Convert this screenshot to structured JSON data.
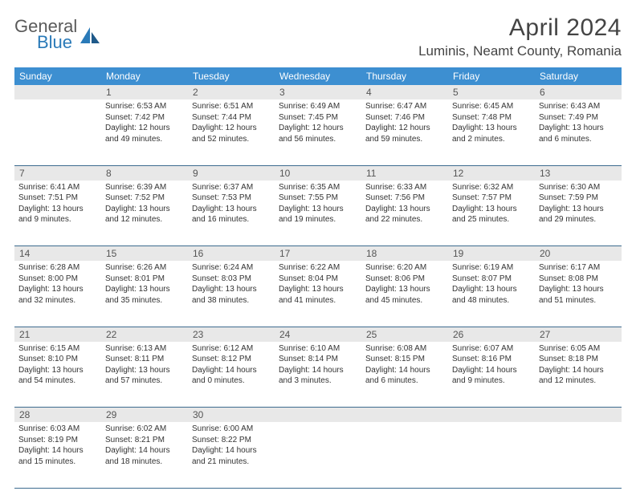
{
  "brand": {
    "line1": "General",
    "line2": "Blue"
  },
  "title": "April 2024",
  "location": "Luminis, Neamt County, Romania",
  "colors": {
    "header_bg": "#3d8fd1",
    "header_text": "#ffffff",
    "daynum_bg": "#e8e8e8",
    "border": "#3d6b8f",
    "logo_gray": "#5a5a5a",
    "logo_blue": "#2a7ab8"
  },
  "day_headers": [
    "Sunday",
    "Monday",
    "Tuesday",
    "Wednesday",
    "Thursday",
    "Friday",
    "Saturday"
  ],
  "weeks": [
    {
      "days": [
        {
          "num": "",
          "lines": []
        },
        {
          "num": "1",
          "lines": [
            "Sunrise: 6:53 AM",
            "Sunset: 7:42 PM",
            "Daylight: 12 hours and 49 minutes."
          ]
        },
        {
          "num": "2",
          "lines": [
            "Sunrise: 6:51 AM",
            "Sunset: 7:44 PM",
            "Daylight: 12 hours and 52 minutes."
          ]
        },
        {
          "num": "3",
          "lines": [
            "Sunrise: 6:49 AM",
            "Sunset: 7:45 PM",
            "Daylight: 12 hours and 56 minutes."
          ]
        },
        {
          "num": "4",
          "lines": [
            "Sunrise: 6:47 AM",
            "Sunset: 7:46 PM",
            "Daylight: 12 hours and 59 minutes."
          ]
        },
        {
          "num": "5",
          "lines": [
            "Sunrise: 6:45 AM",
            "Sunset: 7:48 PM",
            "Daylight: 13 hours and 2 minutes."
          ]
        },
        {
          "num": "6",
          "lines": [
            "Sunrise: 6:43 AM",
            "Sunset: 7:49 PM",
            "Daylight: 13 hours and 6 minutes."
          ]
        }
      ]
    },
    {
      "days": [
        {
          "num": "7",
          "lines": [
            "Sunrise: 6:41 AM",
            "Sunset: 7:51 PM",
            "Daylight: 13 hours and 9 minutes."
          ]
        },
        {
          "num": "8",
          "lines": [
            "Sunrise: 6:39 AM",
            "Sunset: 7:52 PM",
            "Daylight: 13 hours and 12 minutes."
          ]
        },
        {
          "num": "9",
          "lines": [
            "Sunrise: 6:37 AM",
            "Sunset: 7:53 PM",
            "Daylight: 13 hours and 16 minutes."
          ]
        },
        {
          "num": "10",
          "lines": [
            "Sunrise: 6:35 AM",
            "Sunset: 7:55 PM",
            "Daylight: 13 hours and 19 minutes."
          ]
        },
        {
          "num": "11",
          "lines": [
            "Sunrise: 6:33 AM",
            "Sunset: 7:56 PM",
            "Daylight: 13 hours and 22 minutes."
          ]
        },
        {
          "num": "12",
          "lines": [
            "Sunrise: 6:32 AM",
            "Sunset: 7:57 PM",
            "Daylight: 13 hours and 25 minutes."
          ]
        },
        {
          "num": "13",
          "lines": [
            "Sunrise: 6:30 AM",
            "Sunset: 7:59 PM",
            "Daylight: 13 hours and 29 minutes."
          ]
        }
      ]
    },
    {
      "days": [
        {
          "num": "14",
          "lines": [
            "Sunrise: 6:28 AM",
            "Sunset: 8:00 PM",
            "Daylight: 13 hours and 32 minutes."
          ]
        },
        {
          "num": "15",
          "lines": [
            "Sunrise: 6:26 AM",
            "Sunset: 8:01 PM",
            "Daylight: 13 hours and 35 minutes."
          ]
        },
        {
          "num": "16",
          "lines": [
            "Sunrise: 6:24 AM",
            "Sunset: 8:03 PM",
            "Daylight: 13 hours and 38 minutes."
          ]
        },
        {
          "num": "17",
          "lines": [
            "Sunrise: 6:22 AM",
            "Sunset: 8:04 PM",
            "Daylight: 13 hours and 41 minutes."
          ]
        },
        {
          "num": "18",
          "lines": [
            "Sunrise: 6:20 AM",
            "Sunset: 8:06 PM",
            "Daylight: 13 hours and 45 minutes."
          ]
        },
        {
          "num": "19",
          "lines": [
            "Sunrise: 6:19 AM",
            "Sunset: 8:07 PM",
            "Daylight: 13 hours and 48 minutes."
          ]
        },
        {
          "num": "20",
          "lines": [
            "Sunrise: 6:17 AM",
            "Sunset: 8:08 PM",
            "Daylight: 13 hours and 51 minutes."
          ]
        }
      ]
    },
    {
      "days": [
        {
          "num": "21",
          "lines": [
            "Sunrise: 6:15 AM",
            "Sunset: 8:10 PM",
            "Daylight: 13 hours and 54 minutes."
          ]
        },
        {
          "num": "22",
          "lines": [
            "Sunrise: 6:13 AM",
            "Sunset: 8:11 PM",
            "Daylight: 13 hours and 57 minutes."
          ]
        },
        {
          "num": "23",
          "lines": [
            "Sunrise: 6:12 AM",
            "Sunset: 8:12 PM",
            "Daylight: 14 hours and 0 minutes."
          ]
        },
        {
          "num": "24",
          "lines": [
            "Sunrise: 6:10 AM",
            "Sunset: 8:14 PM",
            "Daylight: 14 hours and 3 minutes."
          ]
        },
        {
          "num": "25",
          "lines": [
            "Sunrise: 6:08 AM",
            "Sunset: 8:15 PM",
            "Daylight: 14 hours and 6 minutes."
          ]
        },
        {
          "num": "26",
          "lines": [
            "Sunrise: 6:07 AM",
            "Sunset: 8:16 PM",
            "Daylight: 14 hours and 9 minutes."
          ]
        },
        {
          "num": "27",
          "lines": [
            "Sunrise: 6:05 AM",
            "Sunset: 8:18 PM",
            "Daylight: 14 hours and 12 minutes."
          ]
        }
      ]
    },
    {
      "days": [
        {
          "num": "28",
          "lines": [
            "Sunrise: 6:03 AM",
            "Sunset: 8:19 PM",
            "Daylight: 14 hours and 15 minutes."
          ]
        },
        {
          "num": "29",
          "lines": [
            "Sunrise: 6:02 AM",
            "Sunset: 8:21 PM",
            "Daylight: 14 hours and 18 minutes."
          ]
        },
        {
          "num": "30",
          "lines": [
            "Sunrise: 6:00 AM",
            "Sunset: 8:22 PM",
            "Daylight: 14 hours and 21 minutes."
          ]
        },
        {
          "num": "",
          "lines": []
        },
        {
          "num": "",
          "lines": []
        },
        {
          "num": "",
          "lines": []
        },
        {
          "num": "",
          "lines": []
        }
      ]
    }
  ]
}
